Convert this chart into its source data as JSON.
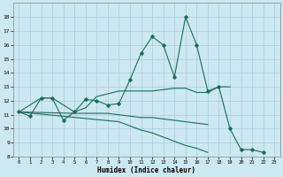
{
  "title": "",
  "xlabel": "Humidex (Indice chaleur)",
  "bg_color": "#cce8f0",
  "grid_color": "#aaccdd",
  "line_color": "#1a6b5a",
  "xlim": [
    -0.5,
    23.5
  ],
  "ylim": [
    8,
    19
  ],
  "yticks": [
    8,
    9,
    10,
    11,
    12,
    13,
    14,
    15,
    16,
    17,
    18
  ],
  "xticks": [
    0,
    1,
    2,
    3,
    4,
    5,
    6,
    7,
    8,
    9,
    10,
    11,
    12,
    13,
    14,
    15,
    16,
    17,
    18,
    19,
    20,
    21,
    22,
    23
  ],
  "line1_x": [
    0,
    1,
    2,
    3,
    4,
    5,
    6,
    7,
    8,
    9,
    10,
    11,
    12,
    13,
    14,
    15,
    16,
    17,
    18,
    19,
    20,
    21,
    22
  ],
  "line1_y": [
    11.2,
    10.9,
    12.2,
    12.2,
    10.6,
    11.2,
    12.1,
    12.0,
    11.7,
    11.8,
    13.5,
    15.4,
    16.6,
    16.0,
    13.7,
    18.0,
    16.0,
    12.7,
    13.0,
    10.0,
    8.5,
    8.5,
    8.3
  ],
  "line2_x": [
    0,
    2,
    3,
    5,
    6,
    7,
    8,
    9,
    10,
    11,
    12,
    13,
    14,
    15,
    16,
    17,
    18,
    19
  ],
  "line2_y": [
    11.2,
    12.2,
    12.2,
    11.2,
    11.5,
    12.3,
    12.5,
    12.7,
    12.7,
    12.7,
    12.7,
    12.8,
    12.9,
    12.9,
    12.6,
    12.6,
    13.0,
    13.0
  ],
  "line3_x": [
    0,
    5,
    6,
    7,
    8,
    9,
    10,
    11,
    12,
    13,
    14,
    15,
    16,
    17
  ],
  "line3_y": [
    11.2,
    11.1,
    11.1,
    11.1,
    11.1,
    11.0,
    10.9,
    10.8,
    10.8,
    10.7,
    10.6,
    10.5,
    10.4,
    10.3
  ],
  "line4_x": [
    0,
    9,
    10,
    11,
    12,
    13,
    14,
    15,
    16,
    17
  ],
  "line4_y": [
    11.2,
    10.5,
    10.2,
    9.9,
    9.7,
    9.4,
    9.1,
    8.8,
    8.6,
    8.3
  ]
}
